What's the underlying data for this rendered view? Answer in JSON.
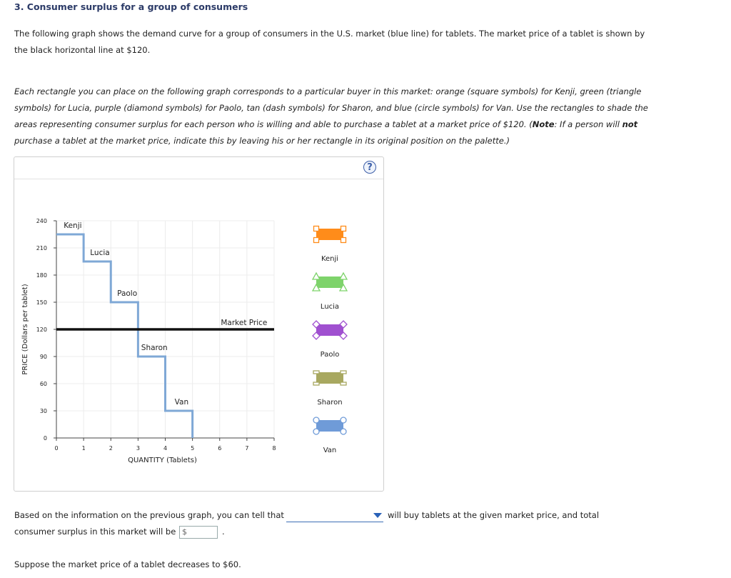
{
  "question": {
    "title": "3. Consumer surplus for a group of consumers",
    "intro": "The following graph shows the demand curve for a group of consumers in the U.S. market (blue line) for tablets. The market price of a tablet is shown by the black horizontal line at $120.",
    "instructions": "Each rectangle you can place on the following graph corresponds to a particular buyer in this market: orange (square symbols) for Kenji, green (triangle symbols) for Lucia, purple (diamond symbols) for Paolo, tan (dash symbols) for Sharon, and blue (circle symbols) for Van. Use the rectangles to shade the areas representing consumer surplus for each person who is willing and able to purchase a tablet at a market price of $120. (",
    "note_label": "Note",
    "note_text_1": ": If a person will ",
    "note_not": "not",
    "note_text_2": " purchase a tablet at the market price, indicate this by leaving his or her rectangle in its original position on the palette.)"
  },
  "help": {
    "glyph": "?"
  },
  "chart_data": {
    "type": "line",
    "title": "",
    "xlabel": "QUANTITY (Tablets)",
    "ylabel": "PRICE (Dollars per tablet)",
    "xlim": [
      0,
      8
    ],
    "ylim": [
      0,
      240
    ],
    "x_ticks": [
      0,
      1,
      2,
      3,
      4,
      5,
      6,
      7,
      8
    ],
    "y_ticks": [
      0,
      30,
      60,
      90,
      120,
      150,
      180,
      210,
      240
    ],
    "grid": true,
    "demand_steps": [
      {
        "name": "Kenji",
        "price": 225,
        "from": 0,
        "to": 1
      },
      {
        "name": "Lucia",
        "price": 195,
        "from": 1,
        "to": 2
      },
      {
        "name": "Paolo",
        "price": 150,
        "from": 2,
        "to": 3
      },
      {
        "name": "Sharon",
        "price": 90,
        "from": 3,
        "to": 4
      },
      {
        "name": "Van",
        "price": 30,
        "from": 4,
        "to": 5
      }
    ],
    "market_price": {
      "label": "Market Price",
      "value": 120
    },
    "colors": {
      "demand": "#7fa8d6",
      "market": "#111111"
    }
  },
  "palette": [
    {
      "name": "Kenji",
      "color": "#ff8c1a",
      "symbol": "square"
    },
    {
      "name": "Lucia",
      "color": "#7ed36b",
      "symbol": "triangle"
    },
    {
      "name": "Paolo",
      "color": "#a050d0",
      "symbol": "diamond"
    },
    {
      "name": "Sharon",
      "color": "#a8a860",
      "symbol": "dash"
    },
    {
      "name": "Van",
      "color": "#6f9bd8",
      "symbol": "circle"
    }
  ],
  "answer": {
    "line1_prefix": "Based on the information on the previous graph, you can tell that",
    "line1_suffix": "will buy tablets at the given market price, and total",
    "line2_prefix": "consumer surplus in this market will be",
    "currency": "$",
    "line2_suffix": ".",
    "followup": "Suppose the market price of a tablet decreases to $60."
  }
}
